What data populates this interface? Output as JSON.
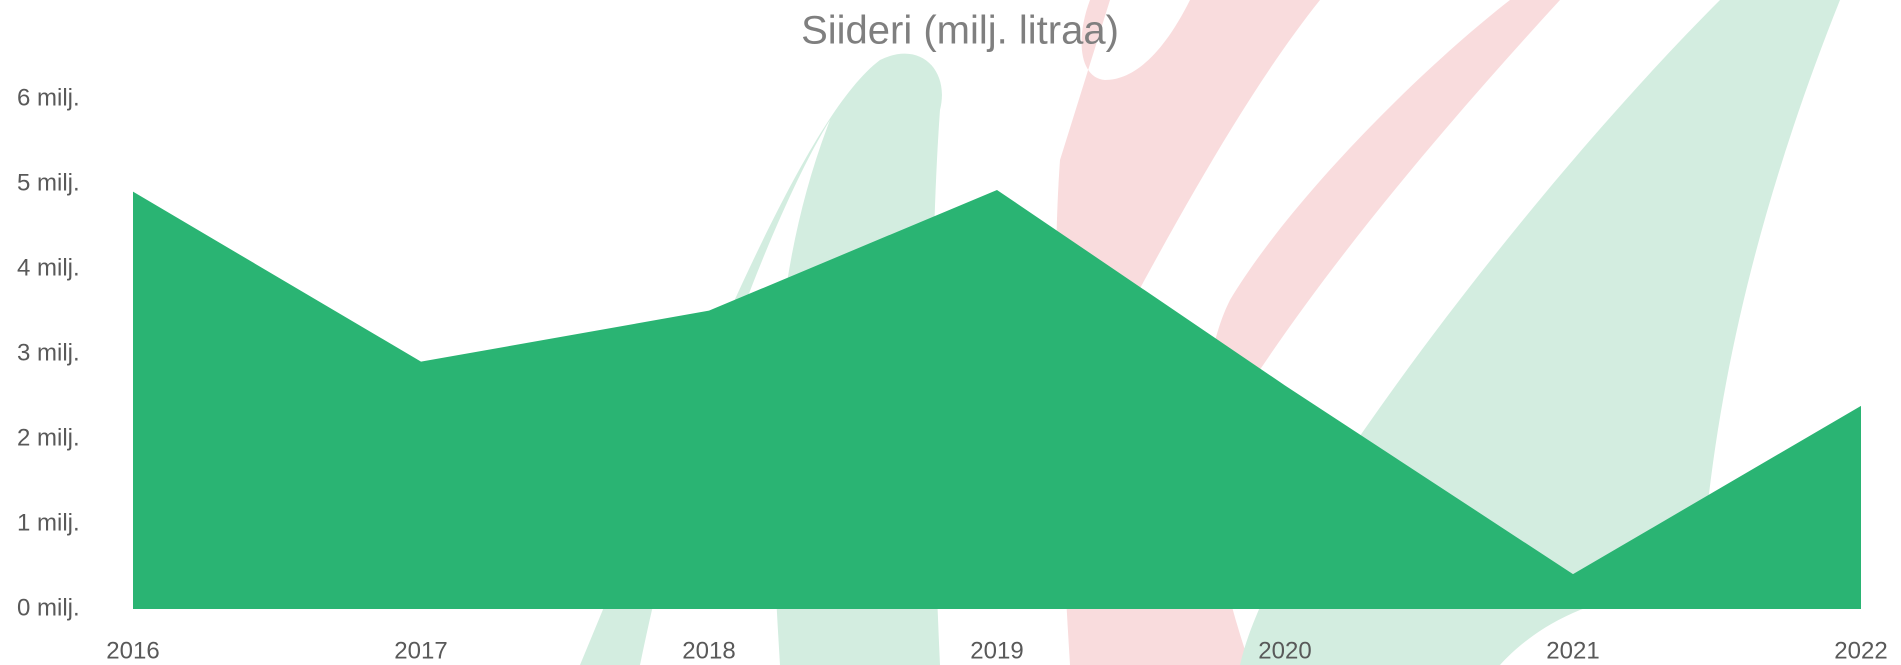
{
  "chart_data": {
    "type": "area",
    "title": "Siideri (milj. litraa)",
    "categories": [
      "2016",
      "2017",
      "2018",
      "2019",
      "2020",
      "2021",
      "2022"
    ],
    "values": [
      4.91,
      2.91,
      3.51,
      4.93,
      2.63,
      0.41,
      2.39
    ],
    "color": "#2ab473",
    "ylim": [
      0,
      6
    ],
    "yticks": [
      {
        "value": 0,
        "label": "0  milj."
      },
      {
        "value": 1,
        "label": "1  milj."
      },
      {
        "value": 2,
        "label": "2  milj."
      },
      {
        "value": 3,
        "label": "3  milj."
      },
      {
        "value": 4,
        "label": "4  milj."
      },
      {
        "value": 5,
        "label": "5  milj."
      },
      {
        "value": 6,
        "label": "6  milj."
      }
    ],
    "grid": false
  }
}
